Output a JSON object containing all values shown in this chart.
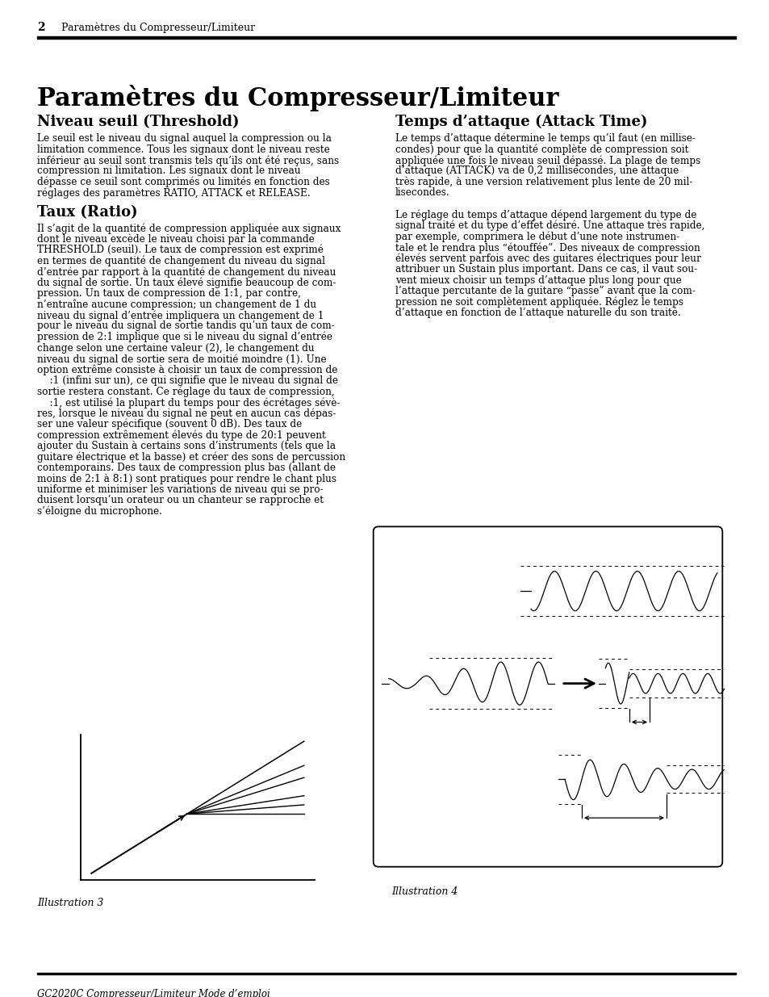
{
  "page_num": "2",
  "header_text": "Paramètres du Compresseur/Limiteur",
  "title": "Paramètres du Compresseur/Limiteur",
  "footer_text": "GC2020C Compresseur/Limiteur Mode d’emploi",
  "section1_title": "Niveau seuil (Threshold)",
  "section2_title": "Taux (Ratio)",
  "section3_title": "Temps d’attaque (Attack Time)",
  "illus3_label": "Illustration 3",
  "illus4_label": "Illustration 4",
  "bg_color": "#ffffff",
  "section1_body": [
    "Le seuil est le niveau du signal auquel la compression ou la",
    "limitation commence. Tous les signaux dont le niveau reste",
    "inférieur au seuil sont transmis tels qu’ils ont été reçus, sans",
    "compression ni limitation. Les signaux dont le niveau",
    "dépasse ce seuil sont comprimés ou limités en fonction des",
    "réglages des paramètres RATIO, ATTACK et RELEASE."
  ],
  "section2_body": [
    "Il s’agit de la quantité de compression appliquée aux signaux",
    "dont le niveau excède le niveau choisi par la commande",
    "THRESHOLD (seuil). Le taux de compression est exprimé",
    "en termes de quantité de changement du niveau du signal",
    "d’entrée par rapport à la quantité de changement du niveau",
    "du signal de sortie. Un taux élevé signifie beaucoup de com-",
    "pression. Un taux de compression de 1:1, par contre,",
    "n’entraîne aucune compression; un changement de 1 du",
    "niveau du signal d’entrée impliquera un changement de 1",
    "pour le niveau du signal de sortie tandis qu’un taux de com-",
    "pression de 2:1 implique que si le niveau du signal d’entrée",
    "change selon une certaine valeur (2), le changement du",
    "niveau du signal de sortie sera de moitié moindre (1). Une",
    "option extrême consiste à choisir un taux de compression de",
    "    :1 (infini sur un), ce qui signifie que le niveau du signal de",
    "sortie restera constant. Ce réglage du taux de compression,",
    "    :1, est utilisé la plupart du temps pour des écrétages sévè-",
    "res, lorsque le niveau du signal ne peut en aucun cas dépas-",
    "ser une valeur spécifique (souvent 0 dB). Des taux de",
    "compression extrêmement élevés du type de 20:1 peuvent",
    "ajouter du Sustain à certains sons d’instruments (tels que la",
    "guitare électrique et la basse) et créer des sons de percussion",
    "contemporains. Des taux de compression plus bas (allant de",
    "moins de 2:1 à 8:1) sont pratiques pour rendre le chant plus",
    "uniforme et minimiser les variations de niveau qui se pro-",
    "duisent lorsqu’un orateur ou un chanteur se rapproche et",
    "s’éloigne du microphone."
  ],
  "section3_body_part1": [
    "Le temps d’attaque détermine le temps qu’il faut (en millise-",
    "condes) pour que la quantité complète de compression soit",
    "appliquée une fois le niveau seuil dépassé. La plage de temps",
    "d’attaque (ATTACK) va de 0,2 millisecondes, une attaque",
    "très rapide, à une version relativement plus lente de 20 mil-",
    "lisecondes."
  ],
  "section3_body_part2": [
    "Le réglage du temps d’attaque dépend largement du type de",
    "signal traité et du type d’effet désiré. Une attaque très rapide,",
    "par exemple, comprimera le début d’une note instrumen-",
    "tale et le rendra plus “étouffée”. Des niveaux de compression",
    "élevés servent parfois avec des guitares électriques pour leur",
    "attribuer un Sustain plus important. Dans ce cas, il vaut sou-",
    "vent mieux choisir un temps d’attaque plus long pour que",
    "l’attaque percutante de la guitare “passe” avant que la com-",
    "pression ne soit complètement appliquée. Réglez le temps",
    "d’attaque en fonction de l’attaque naturelle du son traité."
  ]
}
